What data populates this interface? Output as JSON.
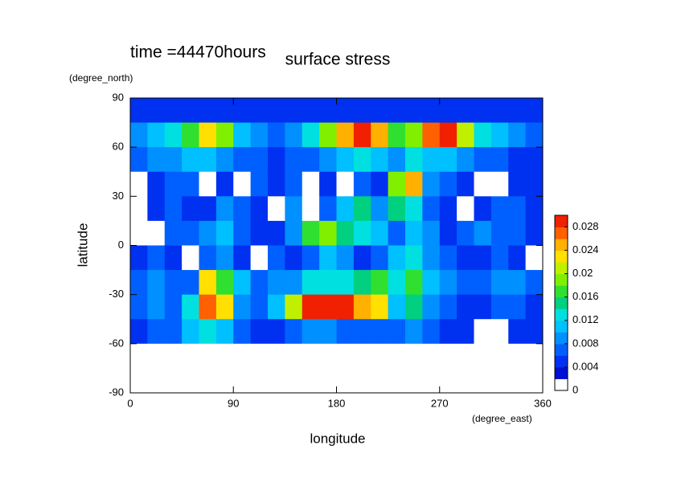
{
  "chart_data": {
    "type": "heatmap",
    "title": "surface stress",
    "subtitle": "time =44470hours",
    "xlabel": "longitude",
    "xunit": "(degree_east)",
    "ylabel": "latitude",
    "yunit": "(degree_north)",
    "xlim": [
      0,
      360
    ],
    "ylim": [
      -90,
      90
    ],
    "xticks": [
      0,
      90,
      180,
      270,
      360
    ],
    "yticks": [
      -90,
      -60,
      -30,
      0,
      30,
      60,
      90
    ],
    "x": [
      7.5,
      22.5,
      37.5,
      52.5,
      67.5,
      82.5,
      97.5,
      112.5,
      127.5,
      142.5,
      157.5,
      172.5,
      187.5,
      202.5,
      217.5,
      232.5,
      247.5,
      262.5,
      277.5,
      292.5,
      307.5,
      322.5,
      337.5,
      352.5
    ],
    "y": [
      82.5,
      67.5,
      52.5,
      37.5,
      22.5,
      7.5,
      -7.5,
      -22.5,
      -37.5,
      -52.5,
      -67.5,
      -82.5
    ],
    "z": [
      [
        0.004,
        0.004,
        0.004,
        0.004,
        0.004,
        0.004,
        0.004,
        0.004,
        0.004,
        0.004,
        0.004,
        0.004,
        0.004,
        0.004,
        0.004,
        0.004,
        0.004,
        0.004,
        0.004,
        0.004,
        0.004,
        0.004,
        0.004,
        0.004
      ],
      [
        0.008,
        0.01,
        0.012,
        0.016,
        0.022,
        0.018,
        0.01,
        0.008,
        0.006,
        0.008,
        0.012,
        0.018,
        0.024,
        0.028,
        0.024,
        0.016,
        0.018,
        0.026,
        0.03,
        0.02,
        0.012,
        0.01,
        0.008,
        0.006
      ],
      [
        0.006,
        0.008,
        0.008,
        0.01,
        0.01,
        0.008,
        0.006,
        0.006,
        0.004,
        0.006,
        0.006,
        0.008,
        0.01,
        0.012,
        0.01,
        0.008,
        0.012,
        0.01,
        0.01,
        0.008,
        0.006,
        0.006,
        0.004,
        0.004
      ],
      [
        0,
        0.004,
        0.006,
        0.006,
        0,
        0.004,
        0,
        0.006,
        0.004,
        0.006,
        0,
        0.004,
        0,
        0.006,
        0.004,
        0.018,
        0.024,
        0.008,
        0.006,
        0.004,
        0,
        0,
        0.004,
        0.004
      ],
      [
        0,
        0.004,
        0.006,
        0.004,
        0.004,
        0.008,
        0.006,
        0.004,
        0,
        0.008,
        0,
        0.006,
        0.01,
        0.014,
        0.008,
        0.014,
        0.012,
        0.006,
        0.004,
        0,
        0.004,
        0.006,
        0.006,
        0.004
      ],
      [
        0,
        0,
        0.006,
        0.006,
        0.008,
        0.01,
        0.006,
        0.004,
        0.004,
        0.008,
        0.016,
        0.018,
        0.014,
        0.012,
        0.01,
        0.006,
        0.01,
        0.008,
        0.004,
        0.006,
        0.008,
        0.006,
        0.006,
        0.004
      ],
      [
        0.004,
        0.006,
        0.004,
        0,
        0.006,
        0.008,
        0.004,
        0,
        0.006,
        0.004,
        0.006,
        0.01,
        0.008,
        0.004,
        0.006,
        0.01,
        0.012,
        0.008,
        0.006,
        0.004,
        0.004,
        0.006,
        0.004,
        0
      ],
      [
        0.006,
        0.008,
        0.006,
        0.006,
        0.022,
        0.016,
        0.01,
        0.006,
        0.008,
        0.008,
        0.012,
        0.012,
        0.012,
        0.014,
        0.016,
        0.012,
        0.016,
        0.01,
        0.008,
        0.006,
        0.006,
        0.008,
        0.008,
        0.006
      ],
      [
        0.006,
        0.008,
        0.006,
        0.012,
        0.026,
        0.022,
        0.008,
        0.006,
        0.01,
        0.02,
        0.028,
        0.03,
        0.028,
        0.024,
        0.022,
        0.01,
        0.014,
        0.008,
        0.006,
        0.004,
        0.004,
        0.006,
        0.006,
        0.004
      ],
      [
        0.004,
        0.006,
        0.006,
        0.01,
        0.012,
        0.01,
        0.006,
        0.004,
        0.004,
        0.006,
        0.008,
        0.008,
        0.006,
        0.006,
        0.006,
        0.006,
        0.008,
        0.006,
        0.004,
        0.004,
        0,
        0,
        0.004,
        0.004
      ],
      [
        0,
        0,
        0,
        0,
        0,
        0,
        0,
        0,
        0,
        0,
        0,
        0,
        0,
        0,
        0,
        0,
        0,
        0,
        0,
        0,
        0,
        0,
        0,
        0
      ],
      [
        0,
        0,
        0,
        0,
        0,
        0,
        0,
        0,
        0,
        0,
        0,
        0,
        0,
        0,
        0,
        0,
        0,
        0,
        0,
        0,
        0,
        0,
        0,
        0
      ]
    ],
    "levels": [
      0,
      0.002,
      0.004,
      0.006,
      0.008,
      0.01,
      0.012,
      0.014,
      0.016,
      0.018,
      0.02,
      0.022,
      0.024,
      0.026,
      0.028,
      0.03
    ],
    "colors": [
      "#ffffff",
      "#0010d0",
      "#0030f0",
      "#0060ff",
      "#0090ff",
      "#00c0ff",
      "#00e0e0",
      "#00d080",
      "#30e030",
      "#80f000",
      "#c0f000",
      "#ffe000",
      "#ffb000",
      "#ff6000",
      "#f02000"
    ],
    "cticks": [
      0,
      0.004,
      0.008,
      0.012,
      0.016,
      0.02,
      0.024,
      0.028
    ]
  }
}
